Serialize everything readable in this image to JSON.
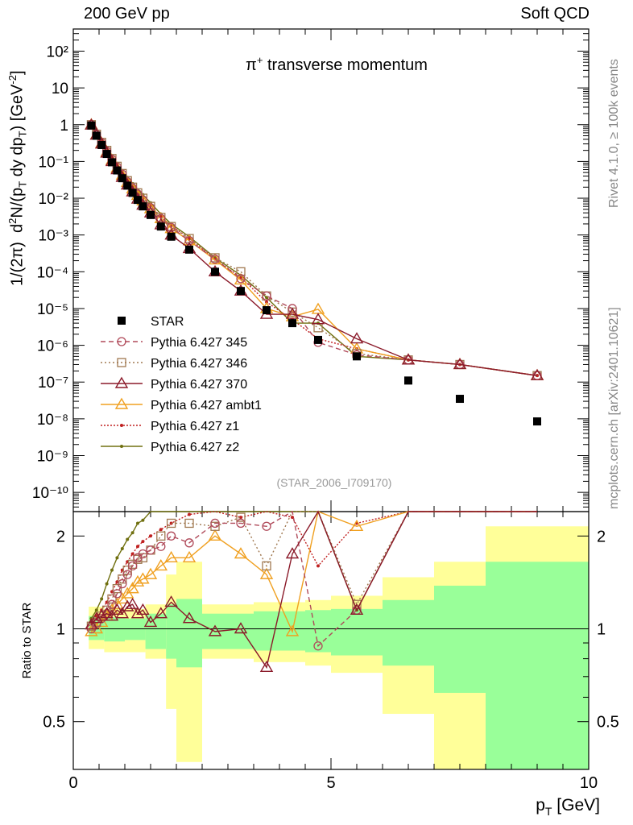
{
  "header": {
    "left": "200 GeV pp",
    "right": "Soft QCD"
  },
  "side_text": {
    "rivet": "Rivet 4.1.0, ≥ 100k events",
    "mcplots": "mcplots.cern.ch [arXiv:2401.10621]"
  },
  "colors": {
    "star": "#000000",
    "p345": "#b04a5a",
    "p346": "#a07850",
    "p370": "#8b1a2a",
    "ambt1": "#f0a020",
    "z1": "#c02020",
    "z2": "#707010",
    "band_yellow": "#ffff99",
    "band_green": "#99ff99"
  },
  "chart_data": {
    "type": "line",
    "title": "π⁺ transverse momentum",
    "analysis_label": "(STAR_2006_I709170)",
    "xlabel": "p_T [GeV]",
    "ylabel_main": "1/(2π)  d²N/(p_T dy dp_T) [GeV⁻²]",
    "ylabel_ratio": "Ratio to STAR",
    "xlim": [
      0,
      10
    ],
    "ylim_main": [
      3e-11,
      400
    ],
    "ylim_ratio": [
      0.35,
      2.4
    ],
    "log_y_main": true,
    "log_y_ratio": true,
    "x_ticks": [
      0,
      5,
      10
    ],
    "main_y_ticks": [
      "10⁻¹⁰",
      "10⁻⁹",
      "10⁻⁸",
      "10⁻⁷",
      "10⁻⁶",
      "10⁻⁵",
      "10⁻⁴",
      "10⁻³",
      "10⁻²",
      "10⁻¹",
      "1",
      "10",
      "10²"
    ],
    "ratio_y_ticks": [
      "0.5",
      "1",
      "2"
    ],
    "x": [
      0.35,
      0.45,
      0.55,
      0.65,
      0.75,
      0.85,
      0.95,
      1.05,
      1.15,
      1.25,
      1.35,
      1.5,
      1.7,
      1.9,
      2.25,
      2.75,
      3.25,
      3.75,
      4.25,
      4.75,
      5.5,
      6.5,
      7.5,
      9.0
    ],
    "star": {
      "name": "STAR",
      "y": [
        0.95,
        0.5,
        0.28,
        0.16,
        0.095,
        0.057,
        0.035,
        0.022,
        0.014,
        0.009,
        0.006,
        0.0035,
        0.0017,
        0.0009,
        0.0004,
        0.0001,
        3e-05,
        9e-06,
        4e-06,
        1.4e-06,
        5e-07,
        1.1e-07,
        3.5e-08,
        8.5e-09
      ]
    },
    "series": [
      {
        "name": "Pythia 6.427 345",
        "key": "p345",
        "marker": "circle",
        "dash": "6,4",
        "y": [
          1.0,
          0.54,
          0.32,
          0.19,
          0.114,
          0.07,
          0.045,
          0.028,
          0.019,
          0.013,
          0.009,
          0.0055,
          0.0028,
          0.0016,
          0.0007,
          0.00022,
          6.5e-05,
          2.2e-05,
          1e-05,
          1.2e-06,
          5.5e-07,
          4e-07,
          3e-07,
          1.5e-07
        ],
        "ratio": [
          1.0,
          1.04,
          1.08,
          1.12,
          1.2,
          1.3,
          1.4,
          1.5,
          1.6,
          1.7,
          1.75,
          1.8,
          1.85,
          2.0,
          1.9,
          2.2,
          2.2,
          2.15,
          2.4,
          0.88,
          1.15,
          2.8,
          3.0,
          3.0
        ]
      },
      {
        "name": "Pythia 6.427 346",
        "key": "p346",
        "marker": "square",
        "dash": "2,3",
        "y": [
          1.0,
          0.55,
          0.33,
          0.2,
          0.12,
          0.074,
          0.047,
          0.03,
          0.02,
          0.014,
          0.01,
          0.006,
          0.003,
          0.0017,
          0.0008,
          0.00024,
          0.0001,
          2.2e-05,
          8e-06,
          3e-06,
          6e-07,
          4e-07,
          3e-07,
          1.5e-07
        ],
        "ratio": [
          1.02,
          1.05,
          1.1,
          1.15,
          1.25,
          1.35,
          1.45,
          1.55,
          1.62,
          1.68,
          1.7,
          1.8,
          2.0,
          2.2,
          2.2,
          2.15,
          2.3,
          1.6,
          2.4,
          2.6,
          1.2,
          2.8,
          3.0,
          3.0
        ]
      },
      {
        "name": "Pythia 6.427 370",
        "key": "p370",
        "marker": "triangle",
        "dash": "",
        "y": [
          0.98,
          0.52,
          0.3,
          0.17,
          0.1,
          0.06,
          0.037,
          0.023,
          0.015,
          0.0095,
          0.0065,
          0.004,
          0.0019,
          0.001,
          0.00043,
          0.0001,
          3e-05,
          7e-06,
          7e-06,
          5e-06,
          1.5e-06,
          4e-07,
          3e-07,
          1.5e-07
        ],
        "ratio": [
          1.03,
          1.08,
          1.1,
          1.12,
          1.1,
          1.15,
          1.12,
          1.18,
          1.2,
          1.12,
          1.15,
          1.05,
          1.12,
          1.22,
          1.08,
          0.98,
          1.0,
          0.75,
          1.75,
          2.6,
          1.15,
          2.8,
          3.0,
          3.0
        ]
      },
      {
        "name": "Pythia 6.427 ambt1",
        "key": "ambt1",
        "marker": "triangle",
        "dash": "",
        "y": [
          1.0,
          0.53,
          0.31,
          0.18,
          0.108,
          0.066,
          0.042,
          0.027,
          0.018,
          0.012,
          0.0085,
          0.0052,
          0.0028,
          0.0015,
          0.0007,
          0.00021,
          6e-05,
          1e-05,
          6e-06,
          9.5e-06,
          8e-07,
          4e-07,
          3e-07,
          1.5e-07
        ],
        "ratio": [
          0.98,
          1.0,
          1.05,
          1.1,
          1.15,
          1.2,
          1.25,
          1.3,
          1.35,
          1.42,
          1.45,
          1.5,
          1.6,
          1.7,
          1.7,
          2.0,
          1.75,
          1.5,
          0.98,
          2.8,
          2.15,
          2.8,
          3.0,
          3.0
        ]
      },
      {
        "name": "Pythia 6.427 z1",
        "key": "z1",
        "marker": "dot",
        "dash": "2,2",
        "y": [
          1.0,
          0.56,
          0.34,
          0.2,
          0.12,
          0.074,
          0.048,
          0.031,
          0.021,
          0.014,
          0.0105,
          0.0063,
          0.0031,
          0.0018,
          0.0008,
          0.00022,
          7e-05,
          1.5e-05,
          5e-06,
          1.5e-06,
          8e-07,
          4e-07,
          3e-07,
          1.5e-07
        ],
        "ratio": [
          1.05,
          1.1,
          1.15,
          1.22,
          1.32,
          1.42,
          1.55,
          1.65,
          1.75,
          1.85,
          1.92,
          2.0,
          2.1,
          2.2,
          2.35,
          2.4,
          2.3,
          2.4,
          2.3,
          1.6,
          2.2,
          2.8,
          3.0,
          3.0
        ]
      },
      {
        "name": "Pythia 6.427 z2",
        "key": "z2",
        "marker": "dot",
        "dash": "",
        "y": [
          1.02,
          0.58,
          0.36,
          0.22,
          0.135,
          0.085,
          0.056,
          0.037,
          0.025,
          0.017,
          0.0125,
          0.0075,
          0.0037,
          0.002,
          0.0009,
          0.00024,
          8e-05,
          2e-05,
          4e-06,
          4e-06,
          5e-07,
          4e-07,
          3e-07,
          1.5e-07
        ],
        "ratio": [
          1.08,
          1.15,
          1.25,
          1.4,
          1.55,
          1.7,
          1.82,
          1.95,
          2.05,
          2.2,
          2.25,
          2.4,
          2.6,
          2.7,
          2.8,
          2.6,
          2.8,
          2.5,
          2.5,
          2.7,
          1.15,
          2.8,
          3.0,
          3.0
        ]
      }
    ],
    "ratio_bands": [
      {
        "x0": 0.3,
        "x1": 0.6,
        "yellow": [
          0.86,
          1.18
        ],
        "green": [
          0.92,
          1.1
        ]
      },
      {
        "x0": 0.6,
        "x1": 1.0,
        "yellow": [
          0.84,
          1.16
        ],
        "green": [
          0.91,
          1.09
        ]
      },
      {
        "x0": 1.0,
        "x1": 1.4,
        "yellow": [
          0.84,
          1.16
        ],
        "green": [
          0.92,
          1.08
        ]
      },
      {
        "x0": 1.4,
        "x1": 1.8,
        "yellow": [
          0.8,
          1.2
        ],
        "green": [
          0.86,
          1.12
        ]
      },
      {
        "x0": 1.8,
        "x1": 2.0,
        "yellow": [
          0.55,
          1.5
        ],
        "green": [
          0.8,
          1.2
        ]
      },
      {
        "x0": 2.0,
        "x1": 2.5,
        "yellow": [
          0.37,
          1.65
        ],
        "green": [
          0.75,
          1.25
        ]
      },
      {
        "x0": 2.5,
        "x1": 3.0,
        "yellow": [
          0.8,
          1.2
        ],
        "green": [
          0.86,
          1.12
        ]
      },
      {
        "x0": 3.0,
        "x1": 3.5,
        "yellow": [
          0.8,
          1.2
        ],
        "green": [
          0.86,
          1.12
        ]
      },
      {
        "x0": 3.5,
        "x1": 4.0,
        "yellow": [
          0.78,
          1.22
        ],
        "green": [
          0.85,
          1.14
        ]
      },
      {
        "x0": 4.0,
        "x1": 4.5,
        "yellow": [
          0.78,
          1.22
        ],
        "green": [
          0.85,
          1.14
        ]
      },
      {
        "x0": 4.5,
        "x1": 5.0,
        "yellow": [
          0.76,
          1.24
        ],
        "green": [
          0.84,
          1.15
        ]
      },
      {
        "x0": 5.0,
        "x1": 6.0,
        "yellow": [
          0.72,
          1.28
        ],
        "green": [
          0.82,
          1.16
        ]
      },
      {
        "x0": 6.0,
        "x1": 7.0,
        "yellow": [
          0.53,
          1.47
        ],
        "green": [
          0.76,
          1.24
        ]
      },
      {
        "x0": 7.0,
        "x1": 8.0,
        "yellow": [
          0.35,
          1.65
        ],
        "green": [
          0.62,
          1.38
        ]
      },
      {
        "x0": 8.0,
        "x1": 10.0,
        "yellow": [
          0.35,
          2.15
        ],
        "green": [
          0.35,
          1.65
        ]
      }
    ]
  }
}
